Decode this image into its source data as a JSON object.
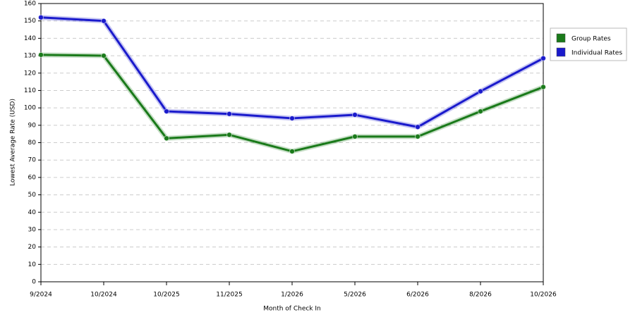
{
  "chart_data": {
    "type": "line",
    "x_label": "Month of Check In",
    "y_label": "Lowest Average Rate (USD)",
    "categories": [
      "9/2024",
      "10/2024",
      "10/2025",
      "11/2025",
      "1/2026",
      "5/2026",
      "6/2026",
      "8/2026",
      "10/2026"
    ],
    "series": [
      {
        "name": "Group Rates",
        "color": "#1a7a1a",
        "values": [
          130.5,
          130,
          82.5,
          84.5,
          75,
          83.5,
          83.5,
          98,
          112
        ]
      },
      {
        "name": "Individual Rates",
        "color": "#1a1acc",
        "values": [
          152,
          150,
          98,
          96.5,
          94,
          96,
          89,
          109.5,
          128.5
        ]
      }
    ],
    "ylim": [
      0,
      160
    ],
    "yticks": [
      0,
      10,
      20,
      30,
      40,
      50,
      60,
      70,
      80,
      90,
      100,
      110,
      120,
      130,
      140,
      150,
      160
    ],
    "grid": true,
    "legend": "right"
  }
}
